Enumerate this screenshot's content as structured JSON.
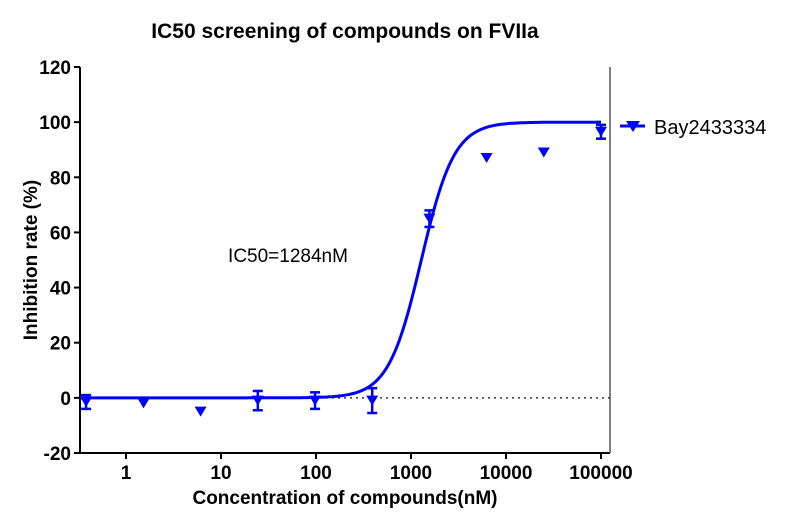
{
  "chart_data": {
    "type": "scatter",
    "title": "IC50 screening of compounds on FVIIa",
    "xlabel": "Concentration of compounds(nM)",
    "ylabel": "Inhibition rate (%)",
    "xscale": "log",
    "xlim": [
      0.3,
      130000
    ],
    "ylim": [
      -20,
      120
    ],
    "xticks": [
      1,
      10,
      100,
      1000,
      10000,
      100000
    ],
    "xtick_labels": [
      "1",
      "10",
      "100",
      "1000",
      "10000",
      "100000"
    ],
    "yticks": [
      -20,
      0,
      20,
      40,
      60,
      80,
      100,
      120
    ],
    "ytick_labels": [
      "-20",
      "0",
      "20",
      "40",
      "60",
      "80",
      "100",
      "120"
    ],
    "grid": false,
    "legend_position": "right",
    "reference_line": {
      "y": 0,
      "style": "dotted"
    },
    "annotation": "IC50=1284nM",
    "series": [
      {
        "name": "Bay2433334",
        "color": "#0000ff",
        "marker": "triangle-down",
        "x": [
          0.38,
          1.53,
          6.1,
          24.4,
          97.7,
          390.6,
          1562.5,
          6250,
          25000,
          100000
        ],
        "y": [
          -1.5,
          -2,
          -5,
          -1,
          -1,
          -1,
          65,
          87,
          89,
          96.5
        ],
        "error": [
          2.5,
          0,
          0,
          3.5,
          3,
          4.5,
          3,
          0,
          0,
          2.5
        ],
        "fit": {
          "model": "sigmoidal dose-response",
          "bottom": 0,
          "top": 100,
          "ic50": 1284,
          "hill": 2.5
        }
      }
    ]
  }
}
